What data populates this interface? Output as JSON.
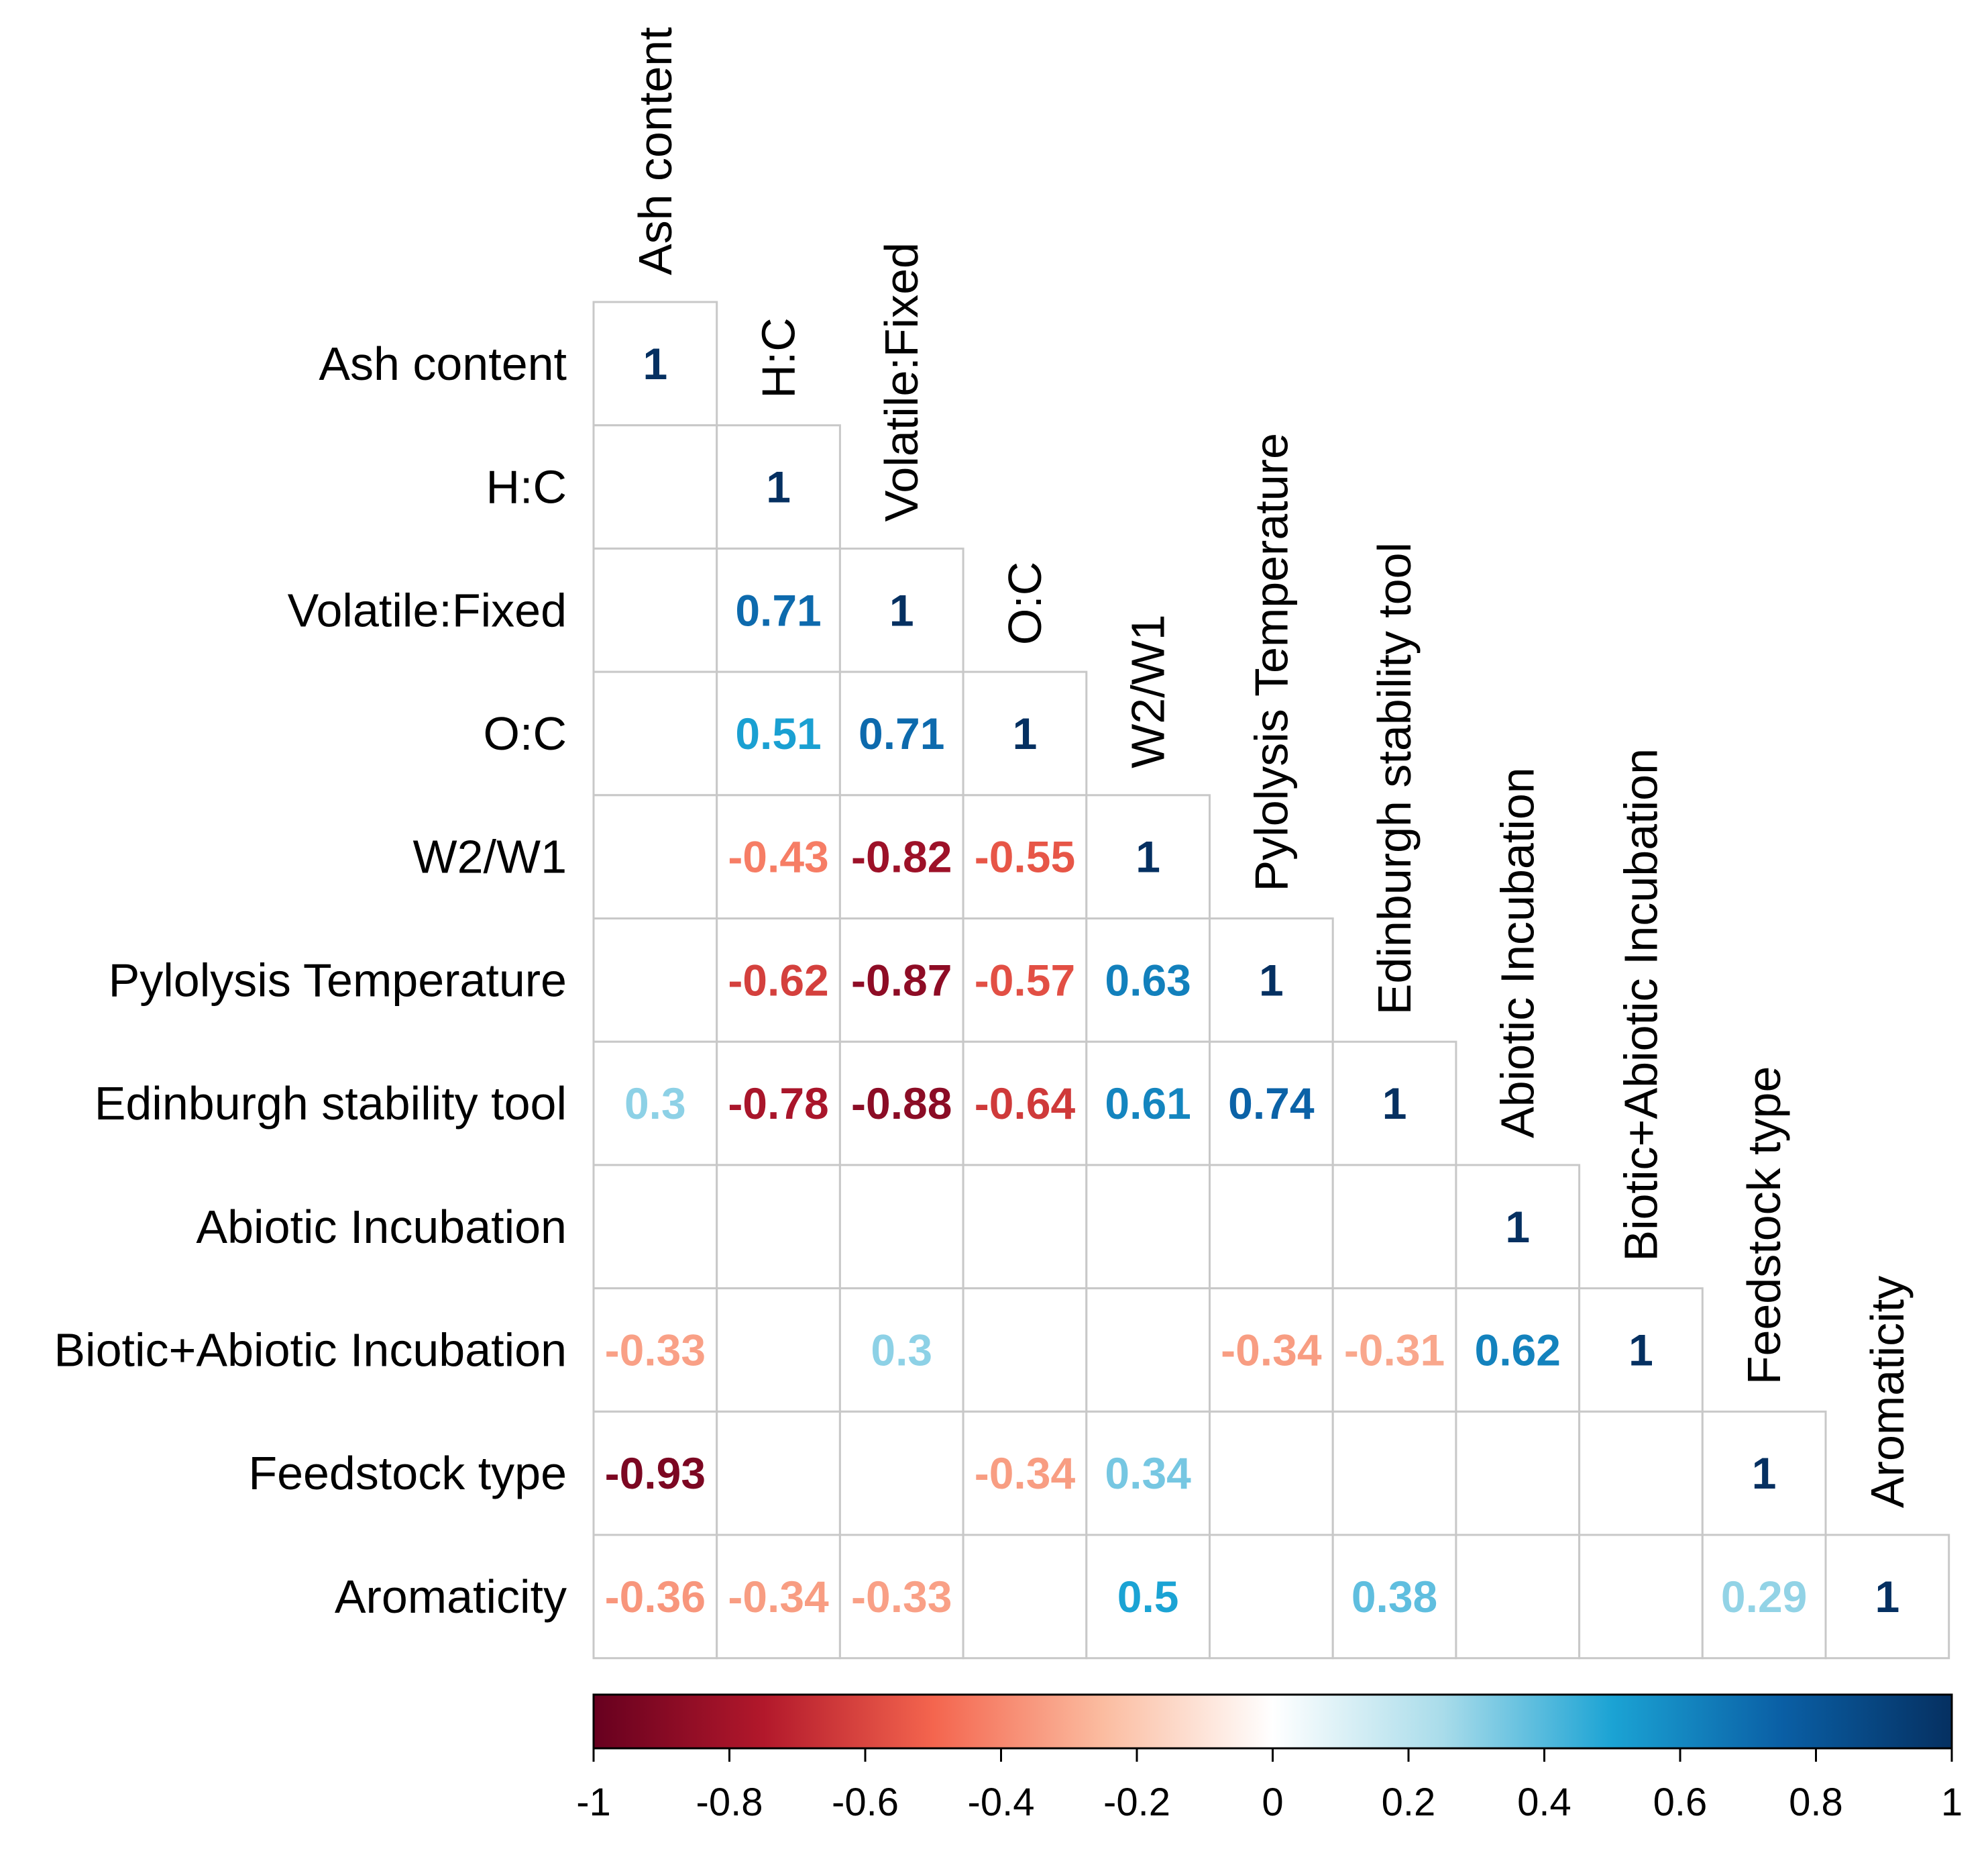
{
  "chart_data": {
    "type": "heatmap",
    "subtype": "correlation-matrix-lower-triangle",
    "title": "",
    "variables": [
      "Ash content",
      "H:C",
      "Volatile:Fixed",
      "O:C",
      "W2/W1",
      "Pylolysis Temperature",
      "Edinburgh stability tool",
      "Abiotic Incubation",
      "Biotic+Abiotic Incubation",
      "Feedstock type",
      "Aromaticity"
    ],
    "matrix": [
      [
        "1"
      ],
      [
        "",
        "1"
      ],
      [
        "",
        "0.71",
        "1"
      ],
      [
        "",
        "0.51",
        "0.71",
        "1"
      ],
      [
        "",
        "-0.43",
        "-0.82",
        "-0.55",
        "1"
      ],
      [
        "",
        "-0.62",
        "-0.87",
        "-0.57",
        "0.63",
        "1"
      ],
      [
        "0.3",
        "-0.78",
        "-0.88",
        "-0.64",
        "0.61",
        "0.74",
        "1"
      ],
      [
        "",
        "",
        "",
        "",
        "",
        "",
        "",
        "1"
      ],
      [
        "-0.33",
        "",
        "0.3",
        "",
        "",
        "-0.34",
        "-0.31",
        "0.62",
        "1"
      ],
      [
        "-0.93",
        "",
        "",
        "-0.34",
        "0.34",
        "",
        "",
        "",
        "",
        "1"
      ],
      [
        "-0.36",
        "-0.34",
        "-0.33",
        "",
        "0.5",
        "",
        "0.38",
        "",
        "",
        "0.29",
        "1"
      ]
    ],
    "colorbar": {
      "range": [
        -1,
        1
      ],
      "tick_labels": [
        "-1",
        "-0.8",
        "-0.6",
        "-0.4",
        "-0.2",
        "0",
        "0.2",
        "0.4",
        "0.6",
        "0.8",
        "1"
      ],
      "stops": [
        {
          "value": -1.0,
          "color": "#67001f"
        },
        {
          "value": -0.75,
          "color": "#b2182b"
        },
        {
          "value": -0.5,
          "color": "#f4654e"
        },
        {
          "value": -0.25,
          "color": "#fbbca0"
        },
        {
          "value": 0.0,
          "color": "#ffffff"
        },
        {
          "value": 0.25,
          "color": "#a9dcea"
        },
        {
          "value": 0.5,
          "color": "#1ba3d4"
        },
        {
          "value": 0.75,
          "color": "#0a5fa5"
        },
        {
          "value": 1.0,
          "color": "#053061"
        }
      ]
    },
    "grid_color": "#c8c8c8"
  }
}
